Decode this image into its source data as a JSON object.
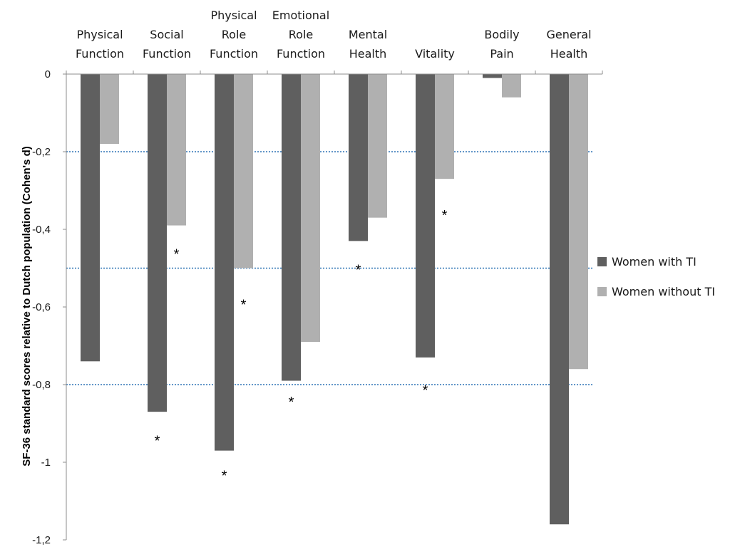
{
  "chart_data": {
    "type": "bar",
    "title": "",
    "xlabel": "",
    "ylabel": "SF-36 standard scores relative to Dutch population  (Cohen's d)",
    "ylim": [
      -1.2,
      0
    ],
    "yticks": [
      0,
      -0.2,
      -0.4,
      -0.6,
      -0.8,
      -1,
      -1.2
    ],
    "ytick_labels": [
      "0",
      "-0,2",
      "-0,4",
      "-0,6",
      "-0,8",
      "-1",
      "-1,2"
    ],
    "categories": [
      [
        "Physical",
        "Function"
      ],
      [
        "Social",
        "Function"
      ],
      [
        "Physical",
        "Role",
        "Function"
      ],
      [
        "Emotional",
        "Role",
        "Function"
      ],
      [
        "Mental",
        "Health"
      ],
      [
        "Vitality"
      ],
      [
        "Bodily",
        "Pain"
      ],
      [
        "General",
        "Health"
      ]
    ],
    "series": [
      {
        "name": "Women with TI",
        "color": "#5f5f5f",
        "values": [
          -0.74,
          -0.87,
          -0.97,
          -0.79,
          -0.43,
          -0.73,
          -0.01,
          -1.16
        ]
      },
      {
        "name": "Women without TI",
        "color": "#b0b0b0",
        "values": [
          -0.18,
          -0.39,
          -0.5,
          -0.69,
          -0.37,
          -0.27,
          -0.06,
          -0.76
        ]
      }
    ],
    "reference_lines": {
      "values": [
        -0.2,
        -0.5,
        -0.8
      ],
      "color": "#2e74b5",
      "style": "dotted"
    },
    "annotations": [
      {
        "text": "*",
        "category": 1,
        "series": 0,
        "y": -0.94
      },
      {
        "text": "*",
        "category": 1,
        "series": 1,
        "y": -0.46
      },
      {
        "text": "*",
        "category": 2,
        "series": 0,
        "y": -1.03
      },
      {
        "text": "*",
        "category": 2,
        "series": 1,
        "y": -0.59
      },
      {
        "text": "*",
        "category": 3,
        "series": 0,
        "y": -0.84
      },
      {
        "text": "*",
        "category": 4,
        "series": 0,
        "y": -0.5
      },
      {
        "text": "*",
        "category": 5,
        "series": 0,
        "y": -0.81
      },
      {
        "text": "*",
        "category": 5,
        "series": 1,
        "y": -0.36
      }
    ],
    "legend_position": "right",
    "grid": false
  }
}
